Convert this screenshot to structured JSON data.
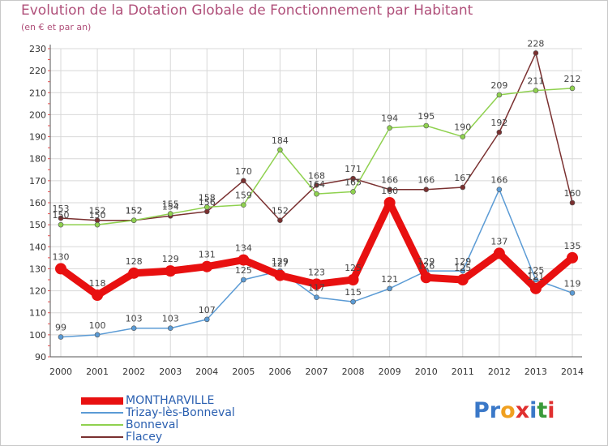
{
  "title": "Evolution de la Dotation Globale de Fonctionnement par Habitant",
  "subtitle": "(en € et par an)",
  "logo": {
    "text": "Proxiti",
    "letters": [
      "P",
      "r",
      "o",
      "x",
      "i",
      "t",
      "i"
    ],
    "colors": [
      "#3a78c8",
      "#3a78c8",
      "#f0a020",
      "#e03030",
      "#3a78c8",
      "#3a9a3a",
      "#e03030"
    ]
  },
  "chart_data": {
    "type": "line",
    "title": "Evolution de la Dotation Globale de Fonctionnement par Habitant",
    "ylabel": "(en € et par an)",
    "xlabel": "",
    "categories": [
      "2000",
      "2001",
      "2002",
      "2003",
      "2004",
      "2005",
      "2006",
      "2007",
      "2008",
      "2009",
      "2010",
      "2011",
      "2012",
      "2013",
      "2014"
    ],
    "ylim": [
      90,
      230
    ],
    "yticks": [
      90,
      100,
      110,
      120,
      130,
      140,
      150,
      160,
      170,
      180,
      190,
      200,
      210,
      220,
      230
    ],
    "grid": true,
    "legend_position": "bottom-left",
    "series": [
      {
        "name": "MONTHARVILLE",
        "color": "#e81010",
        "values": [
          130,
          118,
          128,
          129,
          131,
          134,
          127,
          123,
          125,
          160,
          126,
          125,
          137,
          121,
          135
        ]
      },
      {
        "name": "Trizay-lès-Bonneval",
        "color": "#5b9bd5",
        "values": [
          99,
          100,
          103,
          103,
          107,
          125,
          129,
          117,
          115,
          121,
          129,
          129,
          166,
          125,
          119
        ]
      },
      {
        "name": "Bonneval",
        "color": "#8fd14f",
        "values": [
          150,
          150,
          152,
          155,
          158,
          159,
          184,
          164,
          165,
          194,
          195,
          190,
          209,
          211,
          212
        ]
      },
      {
        "name": "Flacey",
        "color": "#7a3030",
        "values": [
          153,
          152,
          152,
          154,
          156,
          170,
          152,
          168,
          171,
          166,
          166,
          167,
          192,
          228,
          160
        ]
      }
    ]
  }
}
